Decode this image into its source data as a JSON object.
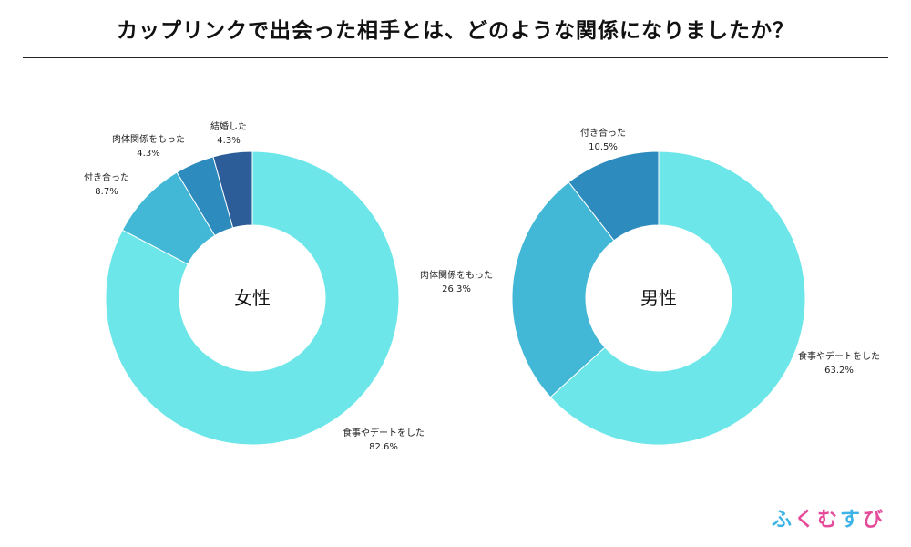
{
  "title": "カップリンクで出会った相手とは、どのような関係になりましたか？",
  "brand": [
    "ふ",
    "く",
    "む",
    "す",
    "び"
  ],
  "chart_data": [
    {
      "type": "pie",
      "donut": true,
      "title": "女性",
      "slices": [
        {
          "label": "食事やデートをした",
          "value": 82.6,
          "value_label": "82.6%",
          "color": "#6ce6e8"
        },
        {
          "label": "付き合った",
          "value": 8.7,
          "value_label": "8.7%",
          "color": "#43b8d6"
        },
        {
          "label": "肉体関係をもった",
          "value": 4.3,
          "value_label": "4.3%",
          "color": "#2d8bbd"
        },
        {
          "label": "結婚した",
          "value": 4.3,
          "value_label": "4.3%",
          "color": "#2c5d98"
        }
      ]
    },
    {
      "type": "pie",
      "donut": true,
      "title": "男性",
      "slices": [
        {
          "label": "食事やデートをした",
          "value": 63.2,
          "value_label": "63.2%",
          "color": "#6ce6e8"
        },
        {
          "label": "肉体関係をもった",
          "value": 26.3,
          "value_label": "26.3%",
          "color": "#43b8d6"
        },
        {
          "label": "付き合った",
          "value": 10.5,
          "value_label": "10.5%",
          "color": "#2d8bbd"
        }
      ]
    }
  ]
}
